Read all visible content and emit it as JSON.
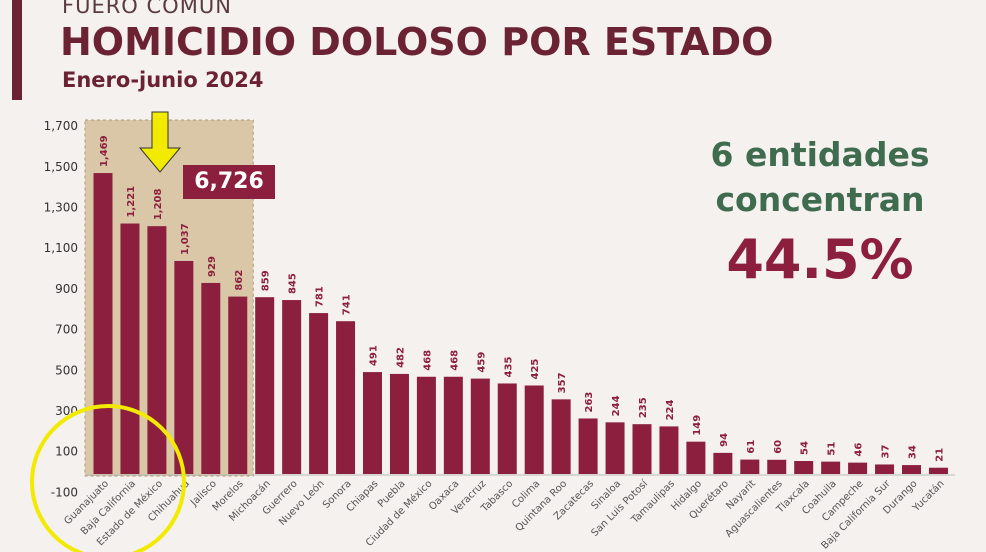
{
  "header": {
    "kicker": "FUERO COMÚN",
    "title": "HOMICIDIO DOLOSO POR ESTADO",
    "subtitle": "Enero-junio 2024"
  },
  "highlight": {
    "total_label": "6,726",
    "note_line1": "6 entidades",
    "note_line2": "concentran",
    "percent": "44.5%",
    "highlighted_count": 6
  },
  "colors": {
    "bar": "#8c1f3e",
    "title": "#6b2334",
    "note": "#3f6b4f",
    "highlight": "#d9c7a8",
    "annotation": "#f2ea00"
  },
  "chart_data": {
    "type": "bar",
    "title": "HOMICIDIO DOLOSO POR ESTADO",
    "xlabel": "",
    "ylabel": "",
    "ylim": [
      -100,
      1700
    ],
    "yticks": [
      "-100",
      "100",
      "300",
      "500",
      "700",
      "900",
      "1,100",
      "1,300",
      "1,500",
      "1,700"
    ],
    "ytick_values": [
      -100,
      100,
      300,
      500,
      700,
      900,
      1100,
      1300,
      1500,
      1700
    ],
    "categories": [
      "Guanajuato",
      "Baja California",
      "Estado de México",
      "Chihuahua",
      "Jalisco",
      "Morelos",
      "Michoacán",
      "Guerrero",
      "Nuevo León",
      "Sonora",
      "Chiapas",
      "Puebla",
      "Ciudad de México",
      "Oaxaca",
      "Veracruz",
      "Tabasco",
      "Colima",
      "Quintana Roo",
      "Zacatecas",
      "Sinaloa",
      "San Luis Potosí",
      "Tamaulipas",
      "Hidalgo",
      "Querétaro",
      "Nayarit",
      "Aguascalientes",
      "Tlaxcala",
      "Coahuila",
      "Campeche",
      "Baja California Sur",
      "Durango",
      "Yucatán"
    ],
    "values": [
      1469,
      1221,
      1208,
      1037,
      929,
      862,
      859,
      845,
      781,
      741,
      491,
      482,
      468,
      468,
      459,
      435,
      425,
      357,
      263,
      244,
      235,
      224,
      149,
      94,
      61,
      60,
      54,
      51,
      46,
      37,
      34,
      21
    ],
    "value_labels": [
      "1,469",
      "1,221",
      "1,208",
      "1,037",
      "929",
      "862",
      "859",
      "845",
      "781",
      "741",
      "491",
      "482",
      "468",
      "468",
      "459",
      "435",
      "425",
      "357",
      "263",
      "244",
      "235",
      "224",
      "149",
      "94",
      "61",
      "60",
      "54",
      "51",
      "46",
      "37",
      "34",
      "21"
    ]
  }
}
